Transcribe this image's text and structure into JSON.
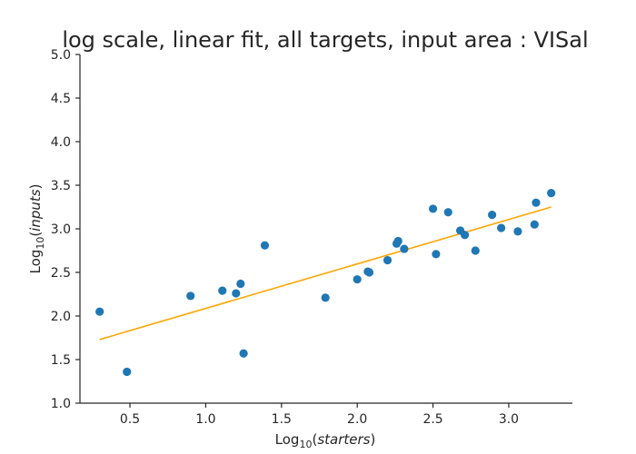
{
  "chart_data": {
    "type": "scatter",
    "title": "log scale, linear fit, all targets, input area : VISal",
    "xlabel": {
      "prefix": "Log",
      "subscript": "10",
      "variable": "starters"
    },
    "ylabel": {
      "prefix": "Log",
      "subscript": "10",
      "variable": "inputs"
    },
    "xlim": [
      0.17,
      3.42
    ],
    "ylim": [
      1.0,
      5.0
    ],
    "xticks": [
      "0.5",
      "1.0",
      "1.5",
      "2.0",
      "2.5",
      "3.0"
    ],
    "yticks": [
      "1.0",
      "1.5",
      "2.0",
      "2.5",
      "3.0",
      "3.5",
      "4.0",
      "4.5",
      "5.0"
    ],
    "grid": false,
    "legend": "none",
    "colors": {
      "points": "#1f77b4",
      "fit_line": "#ffa500",
      "axes": "#262626"
    },
    "series": [
      {
        "kind": "scatter",
        "points": [
          {
            "x": 0.3,
            "y": 2.05
          },
          {
            "x": 0.48,
            "y": 1.36
          },
          {
            "x": 0.9,
            "y": 2.23
          },
          {
            "x": 1.11,
            "y": 2.29
          },
          {
            "x": 1.2,
            "y": 2.26
          },
          {
            "x": 1.23,
            "y": 2.37
          },
          {
            "x": 1.25,
            "y": 1.57
          },
          {
            "x": 1.39,
            "y": 2.81
          },
          {
            "x": 1.79,
            "y": 2.21
          },
          {
            "x": 2.0,
            "y": 2.42
          },
          {
            "x": 2.07,
            "y": 2.51
          },
          {
            "x": 2.08,
            "y": 2.5
          },
          {
            "x": 2.2,
            "y": 2.64
          },
          {
            "x": 2.26,
            "y": 2.83
          },
          {
            "x": 2.27,
            "y": 2.86
          },
          {
            "x": 2.31,
            "y": 2.77
          },
          {
            "x": 2.5,
            "y": 3.23
          },
          {
            "x": 2.52,
            "y": 2.71
          },
          {
            "x": 2.6,
            "y": 3.19
          },
          {
            "x": 2.68,
            "y": 2.98
          },
          {
            "x": 2.71,
            "y": 2.93
          },
          {
            "x": 2.78,
            "y": 2.75
          },
          {
            "x": 2.89,
            "y": 3.16
          },
          {
            "x": 2.95,
            "y": 3.01
          },
          {
            "x": 3.06,
            "y": 2.97
          },
          {
            "x": 3.17,
            "y": 3.05
          },
          {
            "x": 3.18,
            "y": 3.3
          },
          {
            "x": 3.28,
            "y": 3.41
          }
        ]
      },
      {
        "kind": "line",
        "points": [
          {
            "x": 0.3,
            "y": 1.73
          },
          {
            "x": 3.28,
            "y": 3.25
          }
        ]
      }
    ]
  }
}
